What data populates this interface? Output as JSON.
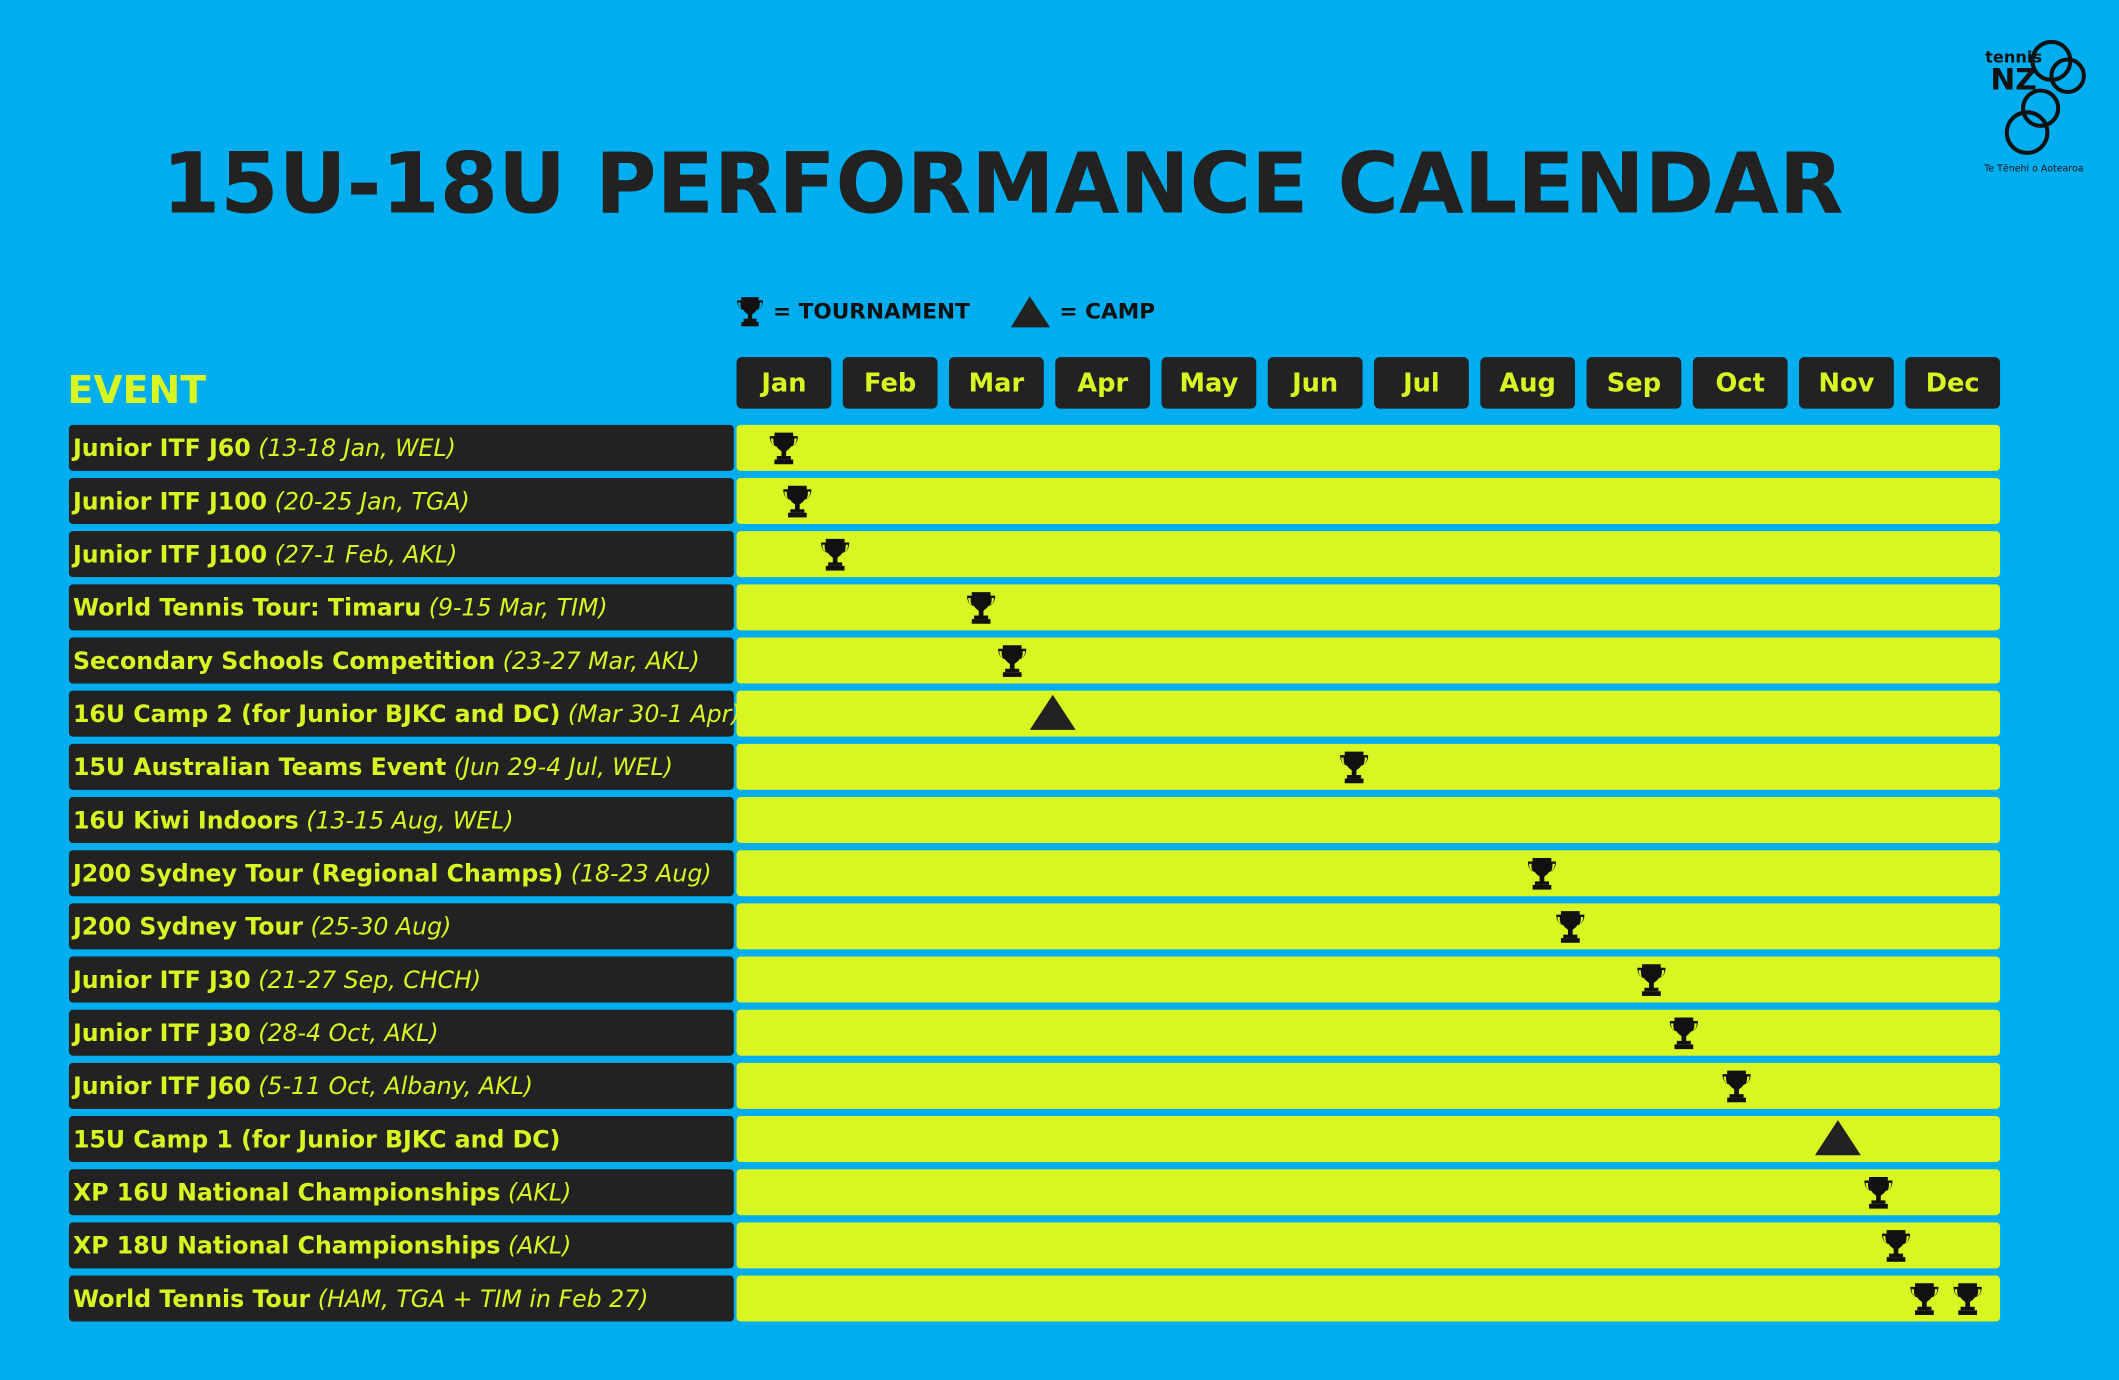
{
  "title": "15U-18U PERFORMANCE CALENDAR",
  "logo": {
    "brand": "tennis",
    "mark": "NZ",
    "tagline": "Te Tēnehi o Aotearoa"
  },
  "legend": {
    "tournament": "= TOURNAMENT",
    "camp": "= CAMP"
  },
  "event_header": "EVENT",
  "months": [
    "Jan",
    "Feb",
    "Mar",
    "Apr",
    "May",
    "Jun",
    "Jul",
    "Aug",
    "Sep",
    "Oct",
    "Nov",
    "Dec"
  ],
  "rows": [
    {
      "name": "Junior ITF J60",
      "detail": "(13-18 Jan, WEL)"
    },
    {
      "name": "Junior ITF J100",
      "detail": "(20-25 Jan, TGA)"
    },
    {
      "name": "Junior ITF J100",
      "detail": "(27-1 Feb, AKL)"
    },
    {
      "name": "World Tennis Tour: Timaru",
      "detail": "(9-15 Mar, TIM)"
    },
    {
      "name": "Secondary Schools Competition",
      "detail": "(23-27 Mar, AKL)"
    },
    {
      "name": "16U Camp 2 (for Junior BJKC and DC)",
      "detail": "(Mar 30-1 Apr)"
    },
    {
      "name": "15U Australian Teams Event",
      "detail": "(Jun 29-4 Jul, WEL)"
    },
    {
      "name": "16U Kiwi Indoors",
      "detail": "(13-15 Aug, WEL)"
    },
    {
      "name": "J200 Sydney Tour (Regional Champs)",
      "detail": "(18-23 Aug)"
    },
    {
      "name": "J200 Sydney Tour",
      "detail": "(25-30 Aug)"
    },
    {
      "name": "Junior ITF J30",
      "detail": "(21-27 Sep, CHCH)"
    },
    {
      "name": "Junior ITF J30",
      "detail": "(28-4 Oct, AKL)"
    },
    {
      "name": "Junior ITF J60",
      "detail": "(5-11 Oct, Albany, AKL)"
    },
    {
      "name": "15U Camp 1 (for Junior BJKC and DC)"
    },
    {
      "name": "XP 16U National Championships",
      "detail": "(AKL)"
    },
    {
      "name": "XP 18U National Championships",
      "detail": "(AKL)"
    },
    {
      "name": "World Tennis Tour",
      "detail": "(HAM, TGA + TIM in Feb 27)"
    }
  ]
}
